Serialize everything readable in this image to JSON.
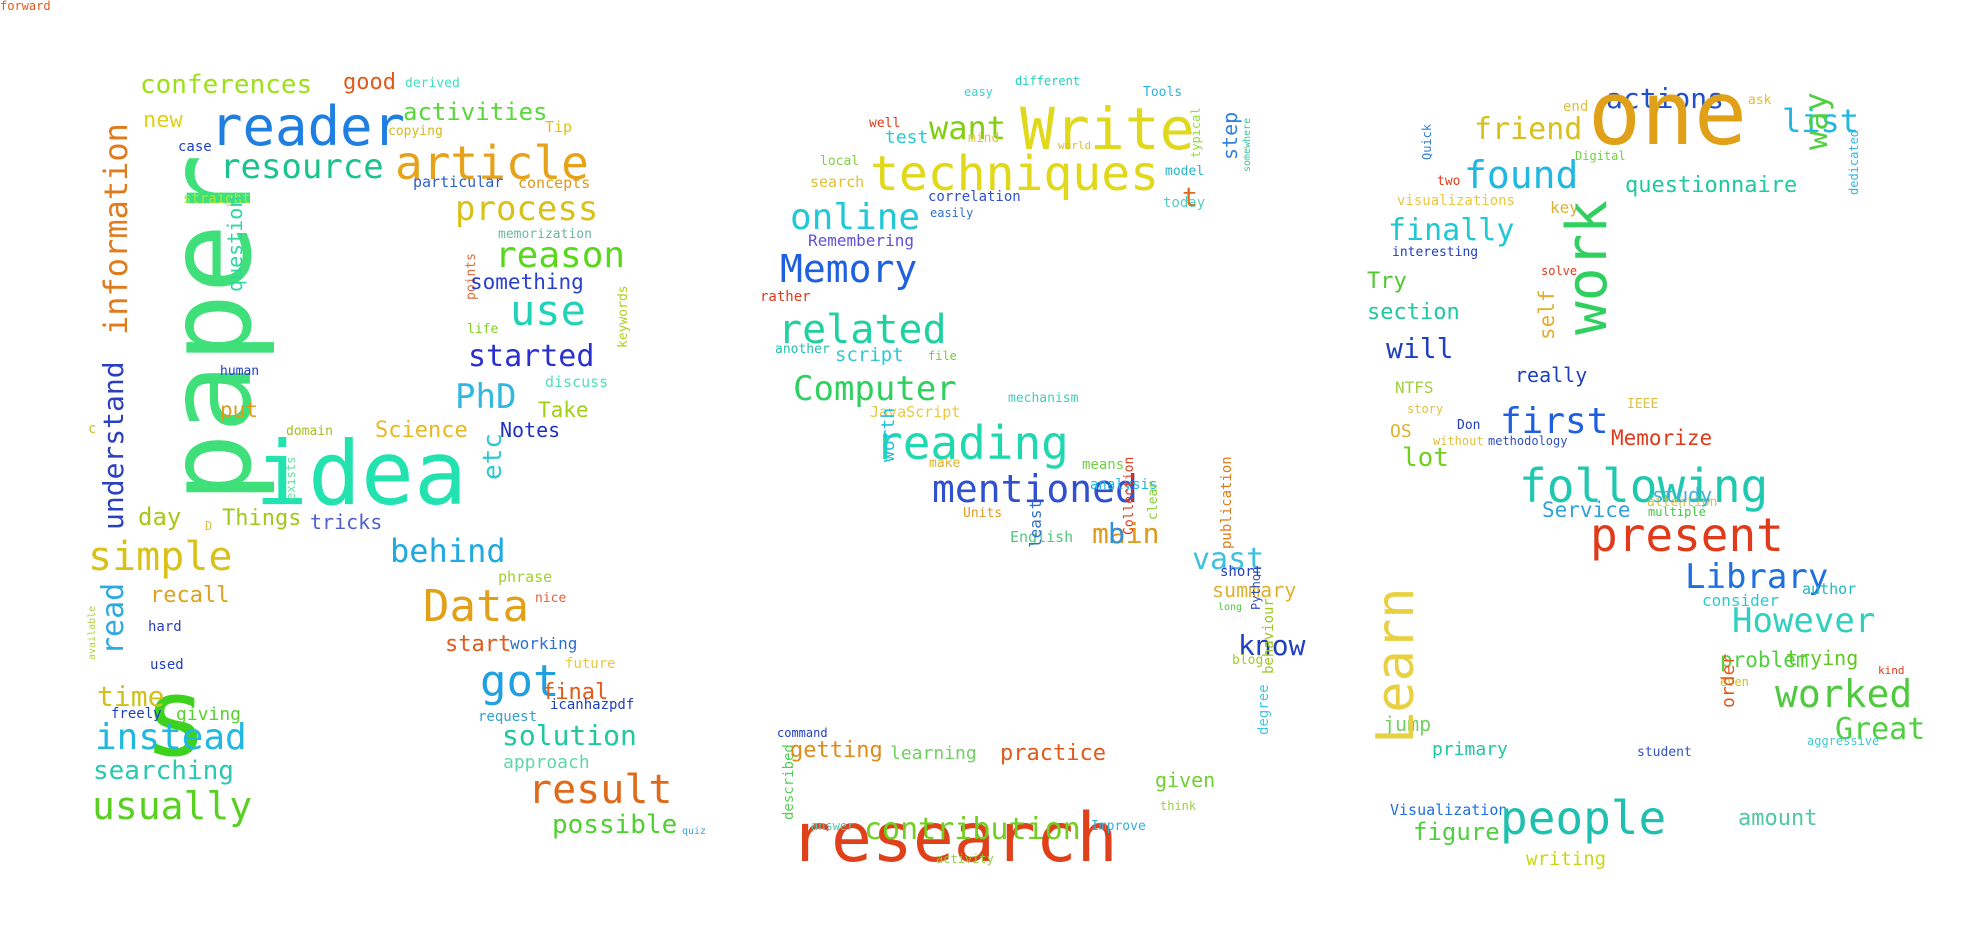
{
  "words": [
    {
      "text": "paper",
      "color": "#3fe07a",
      "rot": true
    },
    {
      "text": "idea",
      "color": "#22e3b0"
    },
    {
      "text": "s",
      "color": "#3dd21e"
    },
    {
      "text": "reader",
      "color": "#1e7fe0"
    },
    {
      "text": "article",
      "color": "#e6a21a"
    },
    {
      "text": "resource",
      "color": "#18c48a"
    },
    {
      "text": "conferences",
      "color": "#9de018"
    },
    {
      "text": "good",
      "color": "#e05a1a"
    },
    {
      "text": "derived",
      "color": "#3fe0c0"
    },
    {
      "text": "activities",
      "color": "#58d83a"
    },
    {
      "text": "copying",
      "color": "#d8b81a"
    },
    {
      "text": "Tip",
      "color": "#e0c01a"
    },
    {
      "text": "new",
      "color": "#e0d01a"
    },
    {
      "text": "case",
      "color": "#2040c8"
    },
    {
      "text": "information",
      "color": "#e07a1a",
      "rot": true
    },
    {
      "text": "particular",
      "color": "#2a60d0"
    },
    {
      "text": "concepts",
      "color": "#e0961a"
    },
    {
      "text": "straight",
      "color": "#a8e83a"
    },
    {
      "text": "process",
      "color": "#d8c21a"
    },
    {
      "text": "memorization",
      "color": "#6ab8a0"
    },
    {
      "text": "question",
      "color": "#30d6a0",
      "rot": true
    },
    {
      "text": "points",
      "color": "#e06a3a",
      "rot": true
    },
    {
      "text": "reason",
      "color": "#58d81a"
    },
    {
      "text": "something",
      "color": "#2a40d0"
    },
    {
      "text": "use",
      "color": "#20d2b8"
    },
    {
      "text": "keywords",
      "color": "#b0d020",
      "rot": true
    },
    {
      "text": "life",
      "color": "#80d020"
    },
    {
      "text": "started",
      "color": "#2a30d0"
    },
    {
      "text": "human",
      "color": "#2040c0"
    },
    {
      "text": "discuss",
      "color": "#50e0b8"
    },
    {
      "text": "understand",
      "color": "#2a40c0",
      "rot": true
    },
    {
      "text": "put",
      "color": "#e09a1a"
    },
    {
      "text": "PhD",
      "color": "#30b8e0"
    },
    {
      "text": "Take",
      "color": "#a0d010"
    },
    {
      "text": "domain",
      "color": "#a0c020"
    },
    {
      "text": "Science",
      "color": "#e8b820"
    },
    {
      "text": "Notes",
      "color": "#2030c0"
    },
    {
      "text": "etc",
      "color": "#30c8d0",
      "rot": true
    },
    {
      "text": "c",
      "color": "#d0c020"
    },
    {
      "text": "exists",
      "color": "#60e0a0",
      "rot": true
    },
    {
      "text": "day",
      "color": "#a8c818"
    },
    {
      "text": "D",
      "color": "#e0c040"
    },
    {
      "text": "Things",
      "color": "#a0c820"
    },
    {
      "text": "tricks",
      "color": "#5060d0"
    },
    {
      "text": "simple",
      "color": "#d8c21a"
    },
    {
      "text": "behind",
      "color": "#20a8e0"
    },
    {
      "text": "phrase",
      "color": "#a0d030"
    },
    {
      "text": "nice",
      "color": "#e06040"
    },
    {
      "text": "available",
      "color": "#b0d040",
      "rot": true
    },
    {
      "text": "read",
      "color": "#30a8e0",
      "rot": true
    },
    {
      "text": "recall",
      "color": "#e0a020"
    },
    {
      "text": "Data",
      "color": "#e0a018"
    },
    {
      "text": "hard",
      "color": "#2a40c0"
    },
    {
      "text": "start",
      "color": "#e05a1a"
    },
    {
      "text": "working",
      "color": "#2a70d0"
    },
    {
      "text": "used",
      "color": "#2040c0"
    },
    {
      "text": "got",
      "color": "#20a0e0"
    },
    {
      "text": "future",
      "color": "#e8c840"
    },
    {
      "text": "time",
      "color": "#d0c020"
    },
    {
      "text": "final",
      "color": "#e05a1a"
    },
    {
      "text": "icanhazpdf",
      "color": "#2040c0"
    },
    {
      "text": "freely",
      "color": "#2040c0"
    },
    {
      "text": "giving",
      "color": "#58d030"
    },
    {
      "text": "request",
      "color": "#30a0d0"
    },
    {
      "text": "instead",
      "color": "#20b8e0"
    },
    {
      "text": "solution",
      "color": "#20c8a0"
    },
    {
      "text": "searching",
      "color": "#2ac8b0"
    },
    {
      "text": "approach",
      "color": "#60d8a8"
    },
    {
      "text": "result",
      "color": "#e06a1a"
    },
    {
      "text": "usually",
      "color": "#58d020"
    },
    {
      "text": "possible",
      "color": "#50d030"
    },
    {
      "text": "quiz",
      "color": "#30a8e0"
    },
    {
      "text": "easy",
      "color": "#40d0d0"
    },
    {
      "text": "different",
      "color": "#20d0b8"
    },
    {
      "text": "Tools",
      "color": "#30b0e0"
    },
    {
      "text": "typical",
      "color": "#90e030",
      "rot": true
    },
    {
      "text": "somewhere",
      "color": "#40c0a0",
      "rot": true
    },
    {
      "text": "well",
      "color": "#e03a1a"
    },
    {
      "text": "want",
      "color": "#80d010"
    },
    {
      "text": "Write",
      "color": "#e0d81a"
    },
    {
      "text": "mind",
      "color": "#e8c040"
    },
    {
      "text": "world",
      "color": "#e0c020"
    },
    {
      "text": "step",
      "color": "#3080e0",
      "rot": true
    },
    {
      "text": "test",
      "color": "#30c8d0"
    },
    {
      "text": "local",
      "color": "#80d040"
    },
    {
      "text": "techniques",
      "color": "#e0d818"
    },
    {
      "text": "model",
      "color": "#20b8c8"
    },
    {
      "text": "search",
      "color": "#e0c030"
    },
    {
      "text": "correlation",
      "color": "#3050d0"
    },
    {
      "text": "today",
      "color": "#50d0c0"
    },
    {
      "text": "t",
      "color": "#e06a1a"
    },
    {
      "text": "online",
      "color": "#20c8d8"
    },
    {
      "text": "easily",
      "color": "#3070d0"
    },
    {
      "text": "Remembering",
      "color": "#6050d8"
    },
    {
      "text": "Memory",
      "color": "#1e60e0"
    },
    {
      "text": "rather",
      "color": "#e03a1a"
    },
    {
      "text": "related",
      "color": "#20d0a0"
    },
    {
      "text": "another",
      "color": "#20c0b0"
    },
    {
      "text": "script",
      "color": "#30c8d8"
    },
    {
      "text": "file",
      "color": "#70d030"
    },
    {
      "text": "Computer",
      "color": "#30d060"
    },
    {
      "text": "mechanism",
      "color": "#40d0b8"
    },
    {
      "text": "JavaScript",
      "color": "#e8c840"
    },
    {
      "text": "reading",
      "color": "#20d8b0"
    },
    {
      "text": "worth",
      "color": "#20c0e0",
      "rot": true
    },
    {
      "text": "means",
      "color": "#70d040"
    },
    {
      "text": "make",
      "color": "#e0b030"
    },
    {
      "text": "mentioned",
      "color": "#3050d0"
    },
    {
      "text": "analysis",
      "color": "#20b8e0"
    },
    {
      "text": "Units",
      "color": "#e09a20"
    },
    {
      "text": "English",
      "color": "#50c880"
    },
    {
      "text": "main",
      "color": "#e09a1a"
    },
    {
      "text": "b",
      "color": "#3090e0"
    },
    {
      "text": "Collection",
      "color": "#e03a1a",
      "rot": true
    },
    {
      "text": "clear",
      "color": "#80d030",
      "rot": true
    },
    {
      "text": "least",
      "color": "#3070d0",
      "rot": true
    },
    {
      "text": "vast",
      "color": "#40c0e0"
    },
    {
      "text": "publication",
      "color": "#e07a1a",
      "rot": true
    },
    {
      "text": "short",
      "color": "#2040c0"
    },
    {
      "text": "summary",
      "color": "#e0b030"
    },
    {
      "text": "long",
      "color": "#50c840"
    },
    {
      "text": "Python",
      "color": "#3050c0",
      "rot": true
    },
    {
      "text": "know",
      "color": "#2040c0"
    },
    {
      "text": "blog",
      "color": "#a0d020"
    },
    {
      "text": "behaviour",
      "color": "#a0c820",
      "rot": true
    },
    {
      "text": "degree",
      "color": "#40c8e0",
      "rot": true
    },
    {
      "text": "command",
      "color": "#2040c0"
    },
    {
      "text": "described",
      "color": "#50d050",
      "rot": true
    },
    {
      "text": "getting",
      "color": "#e08a1a"
    },
    {
      "text": "learning",
      "color": "#70d060"
    },
    {
      "text": "practice",
      "color": "#e05a1a"
    },
    {
      "text": "given",
      "color": "#70d030"
    },
    {
      "text": "research",
      "color": "#e0401a"
    },
    {
      "text": "think",
      "color": "#a0d040"
    },
    {
      "text": "answer",
      "color": "#50c8b0"
    },
    {
      "text": "contribution",
      "color": "#70d020"
    },
    {
      "text": "Improve",
      "color": "#30b0e0"
    },
    {
      "text": "activity",
      "color": "#90d040"
    },
    {
      "text": "actions",
      "color": "#2050d0"
    },
    {
      "text": "ask",
      "color": "#e0c030"
    },
    {
      "text": "one",
      "color": "#e0a018"
    },
    {
      "text": "list",
      "color": "#20b8e0"
    },
    {
      "text": "end",
      "color": "#e0c040"
    },
    {
      "text": "friend",
      "color": "#d8c020"
    },
    {
      "text": "Quick",
      "color": "#3080d0",
      "rot": true
    },
    {
      "text": "Digital",
      "color": "#70d040"
    },
    {
      "text": "way",
      "color": "#50d040",
      "rot": true
    },
    {
      "text": "dedicated",
      "color": "#30b8e0",
      "rot": true
    },
    {
      "text": "two",
      "color": "#e03a1a"
    },
    {
      "text": "found",
      "color": "#20b8e0"
    },
    {
      "text": "questionnaire",
      "color": "#20c8a0"
    },
    {
      "text": "visualizations",
      "color": "#e8c840"
    },
    {
      "text": "key",
      "color": "#e0b030"
    },
    {
      "text": "finally",
      "color": "#20c8d0"
    },
    {
      "text": "interesting",
      "color": "#2040c0"
    },
    {
      "text": "Try",
      "color": "#50c830"
    },
    {
      "text": "solve",
      "color": "#e03a1a"
    },
    {
      "text": "work",
      "color": "#30d060",
      "rot": true
    },
    {
      "text": "section",
      "color": "#20c8a0"
    },
    {
      "text": "self",
      "color": "#e0b030",
      "rot": true
    },
    {
      "text": "will",
      "color": "#2040c0"
    },
    {
      "text": "NTFS",
      "color": "#a0d040"
    },
    {
      "text": "really",
      "color": "#2040c0"
    },
    {
      "text": "story",
      "color": "#e0c040"
    },
    {
      "text": "IEEE",
      "color": "#e0c040"
    },
    {
      "text": "first",
      "color": "#2060e0"
    },
    {
      "text": "Don",
      "color": "#2040c0"
    },
    {
      "text": "OS",
      "color": "#e0b030"
    },
    {
      "text": "without",
      "color": "#e0c040"
    },
    {
      "text": "methodology",
      "color": "#3050c0"
    },
    {
      "text": "Memorize",
      "color": "#e03a1a"
    },
    {
      "text": "lot",
      "color": "#70d020"
    },
    {
      "text": "following",
      "color": "#20c8b0"
    },
    {
      "text": "attention",
      "color": "#e0c040"
    },
    {
      "text": "study",
      "color": "#40b0e0"
    },
    {
      "text": "multiple",
      "color": "#40c840"
    },
    {
      "text": "Service",
      "color": "#30a0e0"
    },
    {
      "text": "present",
      "color": "#e03a1a"
    },
    {
      "text": "Library",
      "color": "#1e70e0"
    },
    {
      "text": "author",
      "color": "#20b8c0"
    },
    {
      "text": "consider",
      "color": "#30c8d0"
    },
    {
      "text": "However",
      "color": "#30d0c0"
    },
    {
      "text": "problem",
      "color": "#50d040"
    },
    {
      "text": "trying",
      "color": "#60c820"
    },
    {
      "text": "even",
      "color": "#d8c020"
    },
    {
      "text": "worked",
      "color": "#50c840"
    },
    {
      "text": "kind",
      "color": "#e03a1a"
    },
    {
      "text": "order",
      "color": "#e05a1a",
      "rot": true
    },
    {
      "text": "jump",
      "color": "#70d060"
    },
    {
      "text": "Great",
      "color": "#50d040"
    },
    {
      "text": "primary",
      "color": "#20c8a0"
    },
    {
      "text": "student",
      "color": "#3050d0"
    },
    {
      "text": "aggressive",
      "color": "#40c8d0"
    },
    {
      "text": "Learn",
      "color": "#e8d040",
      "rot": true
    },
    {
      "text": "Visualization",
      "color": "#1e70e0"
    },
    {
      "text": "amount",
      "color": "#50c8a0"
    },
    {
      "text": "figure",
      "color": "#50d040"
    },
    {
      "text": "people",
      "color": "#20c0b0"
    },
    {
      "text": "writing",
      "color": "#c8d818"
    },
    {
      "text": "forward",
      "color": "#e05a1a"
    }
  ]
}
